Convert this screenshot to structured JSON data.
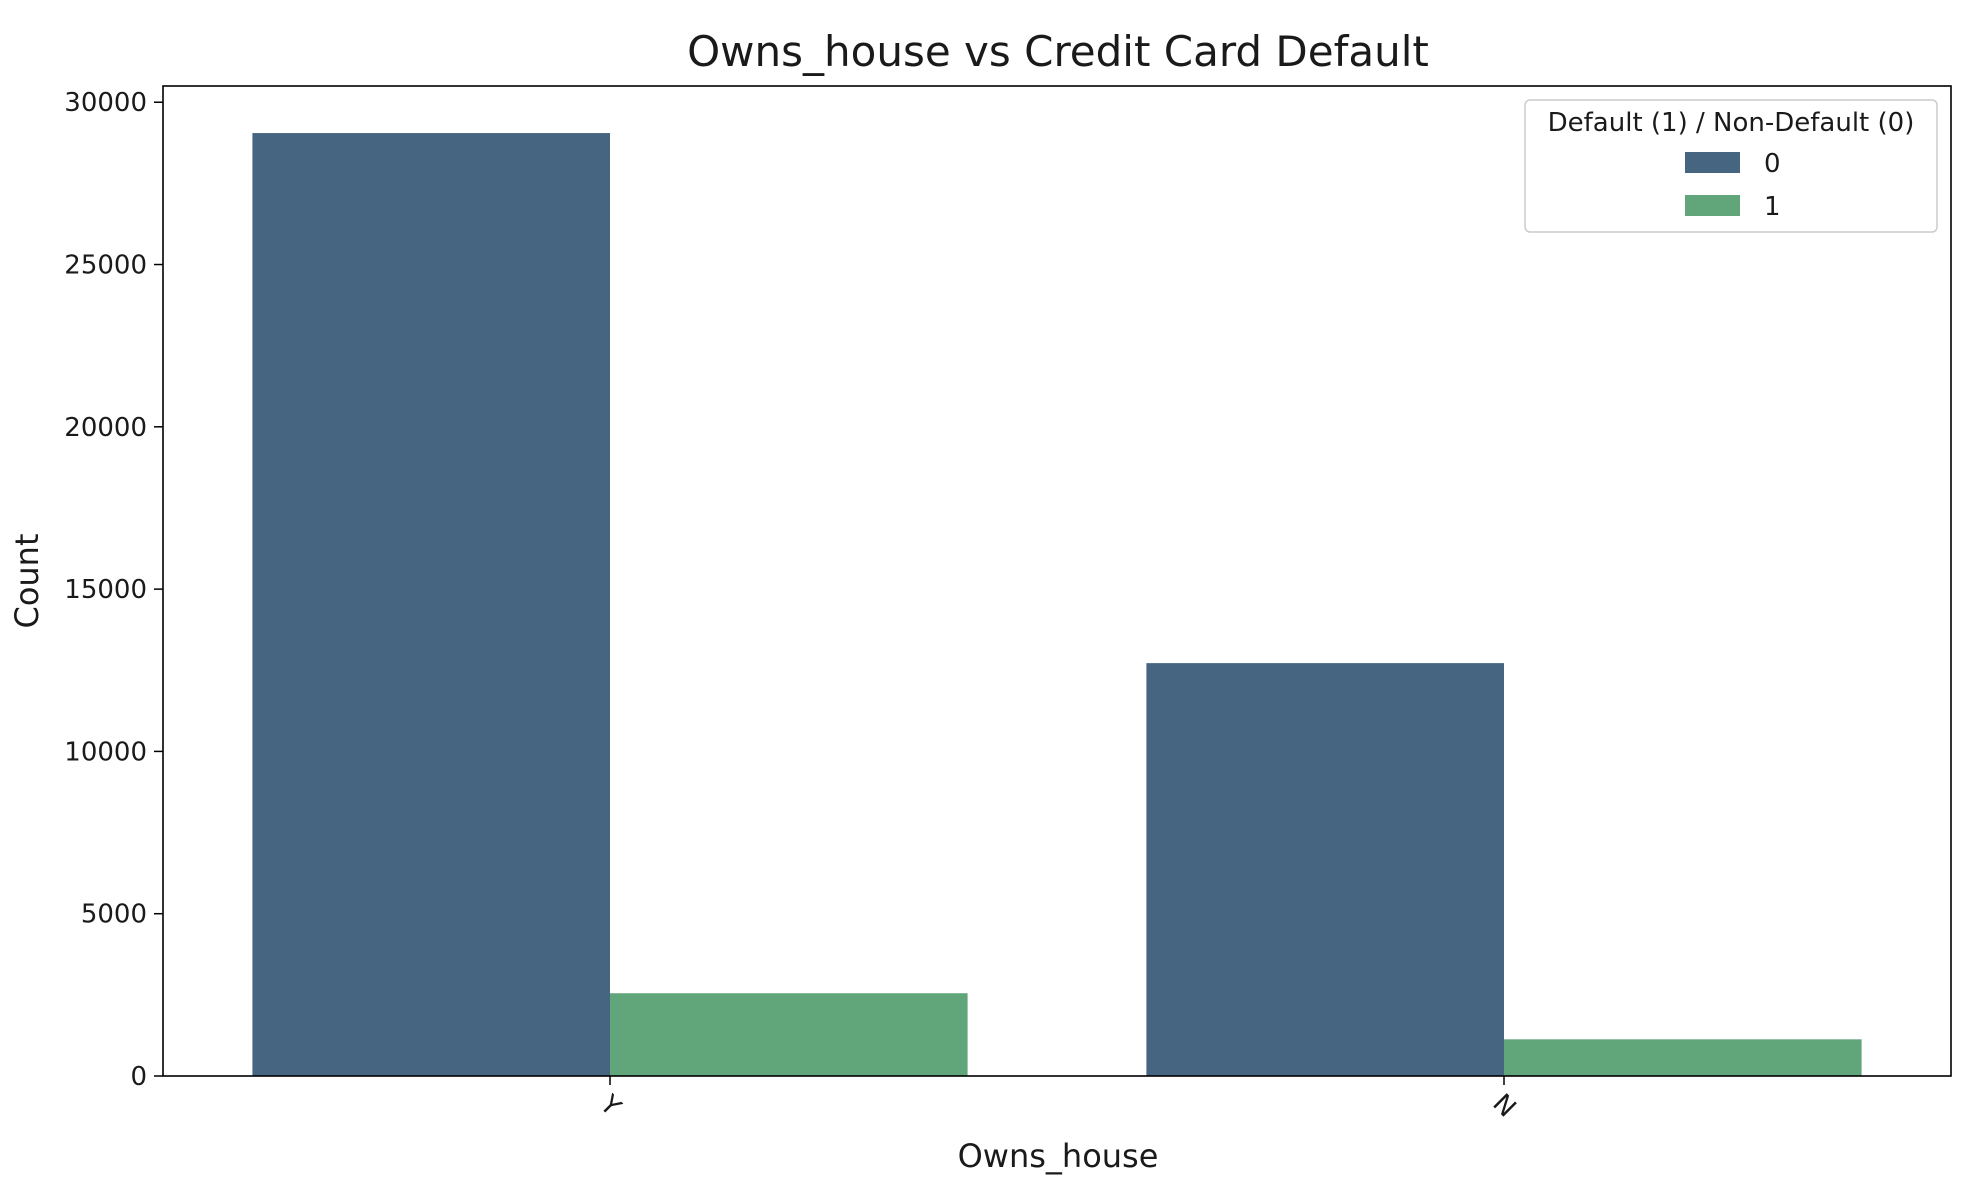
{
  "chart_data": {
    "type": "bar",
    "title": "Owns_house vs Credit Card Default",
    "xlabel": "Owns_house",
    "ylabel": "Count",
    "categories": [
      "Y",
      "N"
    ],
    "series": [
      {
        "name": "0",
        "values": [
          29050,
          12720
        ],
        "color": "#466581"
      },
      {
        "name": "1",
        "values": [
          2550,
          1130
        ],
        "color": "#61a57b"
      }
    ],
    "ylim": [
      0,
      30500
    ],
    "yticks": [
      0,
      5000,
      10000,
      15000,
      20000,
      25000,
      30000
    ],
    "legend": {
      "title": "Default (1) / Non-Default (0)",
      "placement": "top-right"
    },
    "grid": false
  }
}
